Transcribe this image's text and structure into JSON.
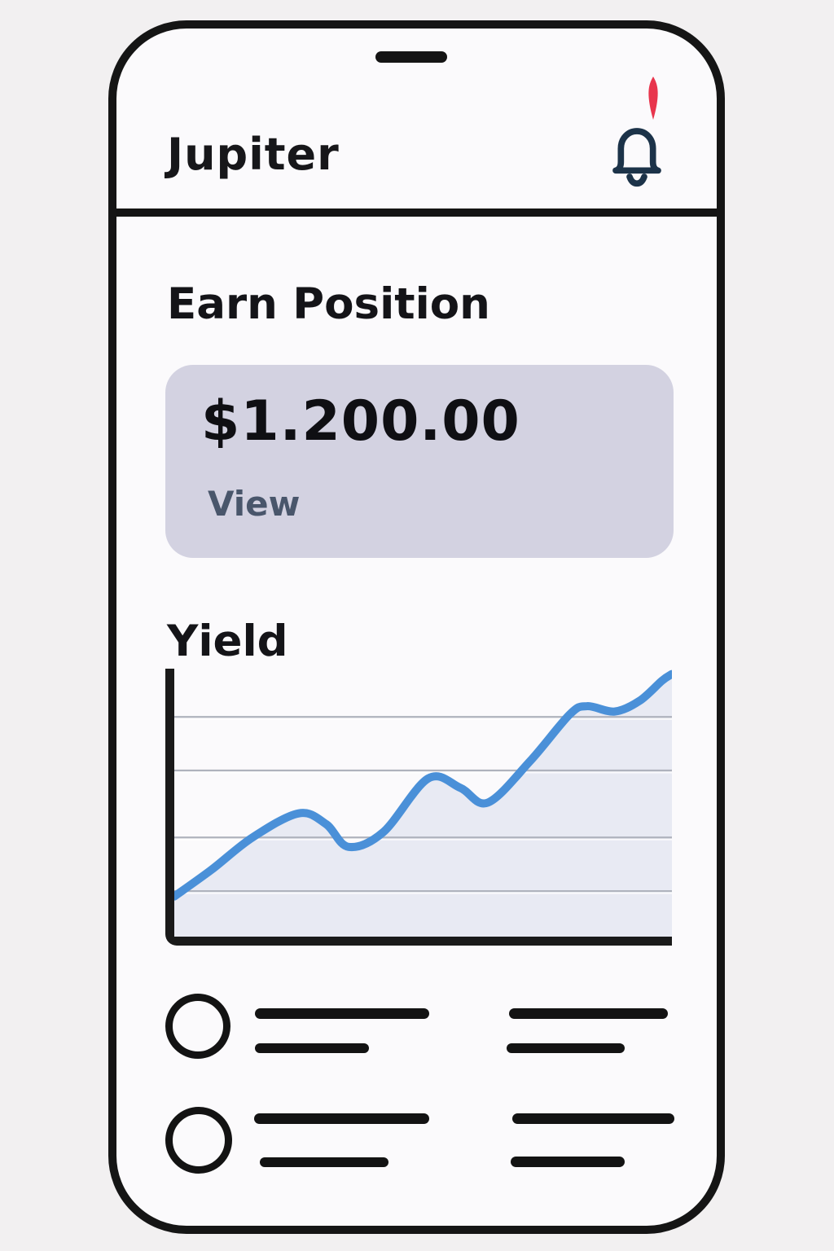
{
  "header": {
    "title": "Jupiter",
    "notification": {
      "bell_color": "#1C3349",
      "badge_color": "#E8354D",
      "has_unread": true
    }
  },
  "earn": {
    "heading": "Earn Position",
    "amount": "$1.200.00",
    "action_label": "View",
    "card_background": "#D3D2E1",
    "action_color": "#49566B"
  },
  "yield_section": {
    "heading": "Yield"
  },
  "chart_data": {
    "type": "area",
    "title": "Yield",
    "xlabel": "",
    "ylabel": "",
    "tick_labels": "none",
    "legend": "none",
    "grid": "horizontal",
    "axis_color": "#1A1A1A",
    "line_color": "#4A90D8",
    "fill_color": "#E8EAF3",
    "gridline_color": "#AFB3BD",
    "gridlines_pct_from_bottom": [
      17,
      37,
      62,
      82
    ],
    "points_pct": [
      [
        0,
        15
      ],
      [
        7.5,
        25
      ],
      [
        15.7,
        37
      ],
      [
        25,
        46
      ],
      [
        30.5,
        42
      ],
      [
        35,
        33.5
      ],
      [
        42,
        39
      ],
      [
        51,
        59
      ],
      [
        57.5,
        55.5
      ],
      [
        63,
        50
      ],
      [
        71.5,
        65.5
      ],
      [
        79.5,
        83
      ],
      [
        83,
        86
      ],
      [
        88.5,
        84
      ],
      [
        93.5,
        88
      ],
      [
        98,
        95.5
      ],
      [
        100,
        98
      ]
    ]
  },
  "list_placeholder": {
    "row_count": 2
  }
}
